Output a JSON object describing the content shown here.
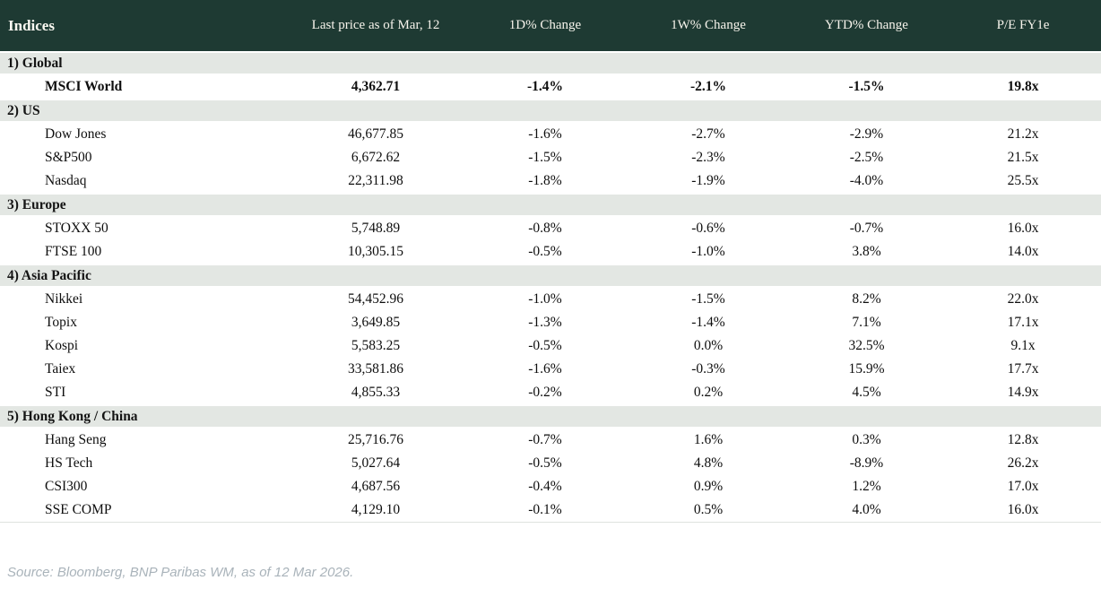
{
  "table": {
    "columns": [
      "Indices",
      "Last price as of Mar, 12",
      "1D% Change",
      "1W% Change",
      "YTD% Change",
      "P/E FY1e"
    ],
    "sections": [
      {
        "label": "1) Global",
        "rows": [
          {
            "name": "MSCI World",
            "bold": true,
            "price": "4,362.71",
            "d1": [
              "-1.4%",
              "neg"
            ],
            "w1": [
              "-2.1%",
              "neg"
            ],
            "ytd": [
              "-1.5%",
              "neg"
            ],
            "pe": "19.8x"
          }
        ]
      },
      {
        "label": "2) US",
        "rows": [
          {
            "name": "Dow Jones",
            "bold": false,
            "price": "46,677.85",
            "d1": [
              "-1.6%",
              "neg"
            ],
            "w1": [
              "-2.7%",
              "neg"
            ],
            "ytd": [
              "-2.9%",
              "neg"
            ],
            "pe": "21.2x"
          },
          {
            "name": "S&P500",
            "bold": false,
            "price": "6,672.62",
            "d1": [
              "-1.5%",
              "neg"
            ],
            "w1": [
              "-2.3%",
              "neg"
            ],
            "ytd": [
              "-2.5%",
              "neg"
            ],
            "pe": "21.5x"
          },
          {
            "name": "Nasdaq",
            "bold": false,
            "price": "22,311.98",
            "d1": [
              "-1.8%",
              "neg"
            ],
            "w1": [
              "-1.9%",
              "neg"
            ],
            "ytd": [
              "-4.0%",
              "neg"
            ],
            "pe": "25.5x"
          }
        ]
      },
      {
        "label": "3) Europe",
        "rows": [
          {
            "name": "STOXX 50",
            "bold": false,
            "price": "5,748.89",
            "d1": [
              "-0.8%",
              "neg"
            ],
            "w1": [
              "-0.6%",
              "neg"
            ],
            "ytd": [
              "-0.7%",
              "neg"
            ],
            "pe": "16.0x"
          },
          {
            "name": "FTSE 100",
            "bold": false,
            "price": "10,305.15",
            "d1": [
              "-0.5%",
              "neg"
            ],
            "w1": [
              "-1.0%",
              "neg"
            ],
            "ytd": [
              "3.8%",
              "pos"
            ],
            "pe": "14.0x"
          }
        ]
      },
      {
        "label": "4) Asia Pacific",
        "rows": [
          {
            "name": "Nikkei",
            "bold": false,
            "price": "54,452.96",
            "d1": [
              "-1.0%",
              "neg"
            ],
            "w1": [
              "-1.5%",
              "neg"
            ],
            "ytd": [
              "8.2%",
              "pos"
            ],
            "pe": "22.0x"
          },
          {
            "name": "Topix",
            "bold": false,
            "price": "3,649.85",
            "d1": [
              "-1.3%",
              "neg"
            ],
            "w1": [
              "-1.4%",
              "neg"
            ],
            "ytd": [
              "7.1%",
              "pos"
            ],
            "pe": "17.1x"
          },
          {
            "name": "Kospi",
            "bold": false,
            "price": "5,583.25",
            "d1": [
              "-0.5%",
              "neg"
            ],
            "w1": [
              "0.0%",
              "neg"
            ],
            "ytd": [
              "32.5%",
              "pos"
            ],
            "pe": "9.1x"
          },
          {
            "name": "Taiex",
            "bold": false,
            "price": "33,581.86",
            "d1": [
              "-1.6%",
              "neg"
            ],
            "w1": [
              "-0.3%",
              "neg"
            ],
            "ytd": [
              "15.9%",
              "pos"
            ],
            "pe": "17.7x"
          },
          {
            "name": "STI",
            "bold": false,
            "price": "4,855.33",
            "d1": [
              "-0.2%",
              "neg"
            ],
            "w1": [
              "0.2%",
              "pos"
            ],
            "ytd": [
              "4.5%",
              "pos"
            ],
            "pe": "14.9x"
          }
        ]
      },
      {
        "label": "5) Hong Kong / China",
        "rows": [
          {
            "name": "Hang Seng",
            "bold": false,
            "price": "25,716.76",
            "d1": [
              "-0.7%",
              "neg"
            ],
            "w1": [
              "1.6%",
              "pos"
            ],
            "ytd": [
              "0.3%",
              "pos"
            ],
            "pe": "12.8x"
          },
          {
            "name": "HS Tech",
            "bold": false,
            "price": "5,027.64",
            "d1": [
              "-0.5%",
              "neg"
            ],
            "w1": [
              "4.8%",
              "pos"
            ],
            "ytd": [
              "-8.9%",
              "neg"
            ],
            "pe": "26.2x"
          },
          {
            "name": "CSI300",
            "bold": false,
            "price": "4,687.56",
            "d1": [
              "-0.4%",
              "neg"
            ],
            "w1": [
              "0.9%",
              "pos"
            ],
            "ytd": [
              "1.2%",
              "pos"
            ],
            "pe": "17.0x"
          },
          {
            "name": "SSE COMP",
            "bold": false,
            "price": "4,129.10",
            "d1": [
              "-0.1%",
              "neg"
            ],
            "w1": [
              "0.5%",
              "pos"
            ],
            "ytd": [
              "4.0%",
              "pos"
            ],
            "pe": "16.0x"
          }
        ]
      }
    ]
  },
  "footer": {
    "source": "Source: Bloomberg, BNP Paribas WM, as of 12 Mar 2026."
  },
  "colors": {
    "header_bg": "#1e3a33",
    "header_text": "#f7f4ec",
    "section_bg": "#e3e7e3",
    "negative": "#c00000",
    "positive": "#149b3c",
    "source_text": "#a9b3ba"
  }
}
